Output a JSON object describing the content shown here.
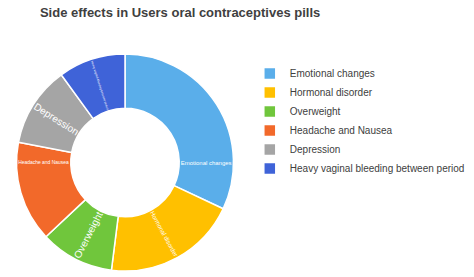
{
  "chart_data": {
    "type": "pie",
    "title": "Side effects in Users oral contraceptives pills",
    "categories": [
      "Emotional changes",
      "Hormonal disorder",
      "Overweight",
      "Headache and Nausea",
      "Depression",
      "Heavy vaginal bleeding between period"
    ],
    "values": [
      32,
      20,
      11,
      15,
      12,
      10
    ],
    "colors": [
      "#5aaeea",
      "#ffc000",
      "#70c63c",
      "#f2692a",
      "#a5a5a5",
      "#3f63d8"
    ],
    "legend": "right"
  }
}
